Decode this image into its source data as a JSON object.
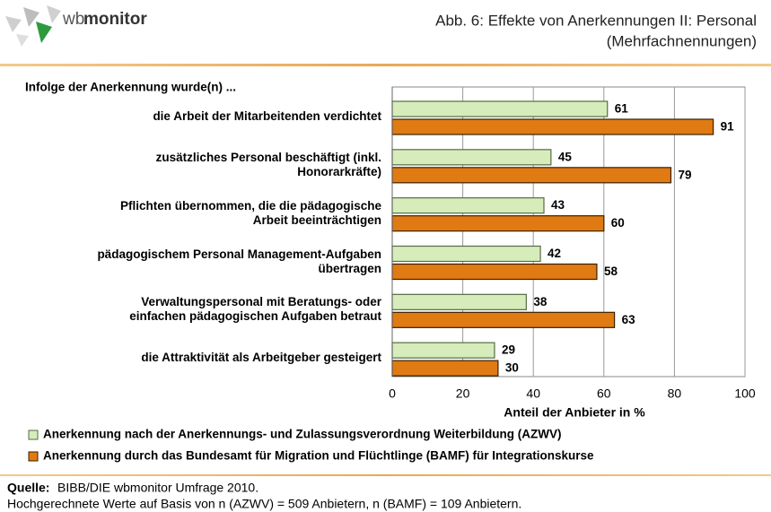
{
  "logo": {
    "prefix": "wb",
    "name": "monitor"
  },
  "chart_data": {
    "type": "bar",
    "orientation": "horizontal",
    "title": "Abb. 6: Effekte von Anerkennungen II: Personal",
    "subtitle": "(Mehrfachnennungen)",
    "question": "Infolge der Anerkennung wurde(n) ...",
    "x_label": "Anteil der Anbieter in %",
    "categories": [
      "die Arbeit der Mitarbeitenden verdichtet",
      "zusätzliches Personal beschäftigt (inkl.\nHonorarkräfte)",
      "Pflichten übernommen, die die pädagogische\nArbeit beeinträchtigen",
      "pädagogischem Personal Management-Aufgaben\nübertragen",
      "Verwaltungspersonal mit Beratungs- oder\neinfachen pädagogischen Aufgaben betraut",
      "die Attraktivität als Arbeitgeber gesteigert"
    ],
    "series": [
      {
        "name": "Anerkennung nach der Anerkennungs- und Zulassungsverordnung Weiterbildung (AZWV)",
        "color": "#d6edbb",
        "values": [
          61,
          45,
          43,
          42,
          38,
          29
        ]
      },
      {
        "name": "Anerkennung durch das Bundesamt für Migration und Flüchtlinge (BAMF) für Integrationskurse",
        "color": "#e07a12",
        "values": [
          91,
          79,
          60,
          58,
          63,
          30
        ]
      }
    ],
    "xlim": [
      0,
      100
    ],
    "xticks": [
      0,
      20,
      40,
      60,
      80,
      100
    ],
    "grid": true
  },
  "source": {
    "label": "Quelle:",
    "text": "BIBB/DIE wbmonitor Umfrage 2010.",
    "note": "Hochgerechnete Werte auf Basis von n (AZWV) = 509 Anbietern, n (BAMF) = 109 Anbietern."
  }
}
